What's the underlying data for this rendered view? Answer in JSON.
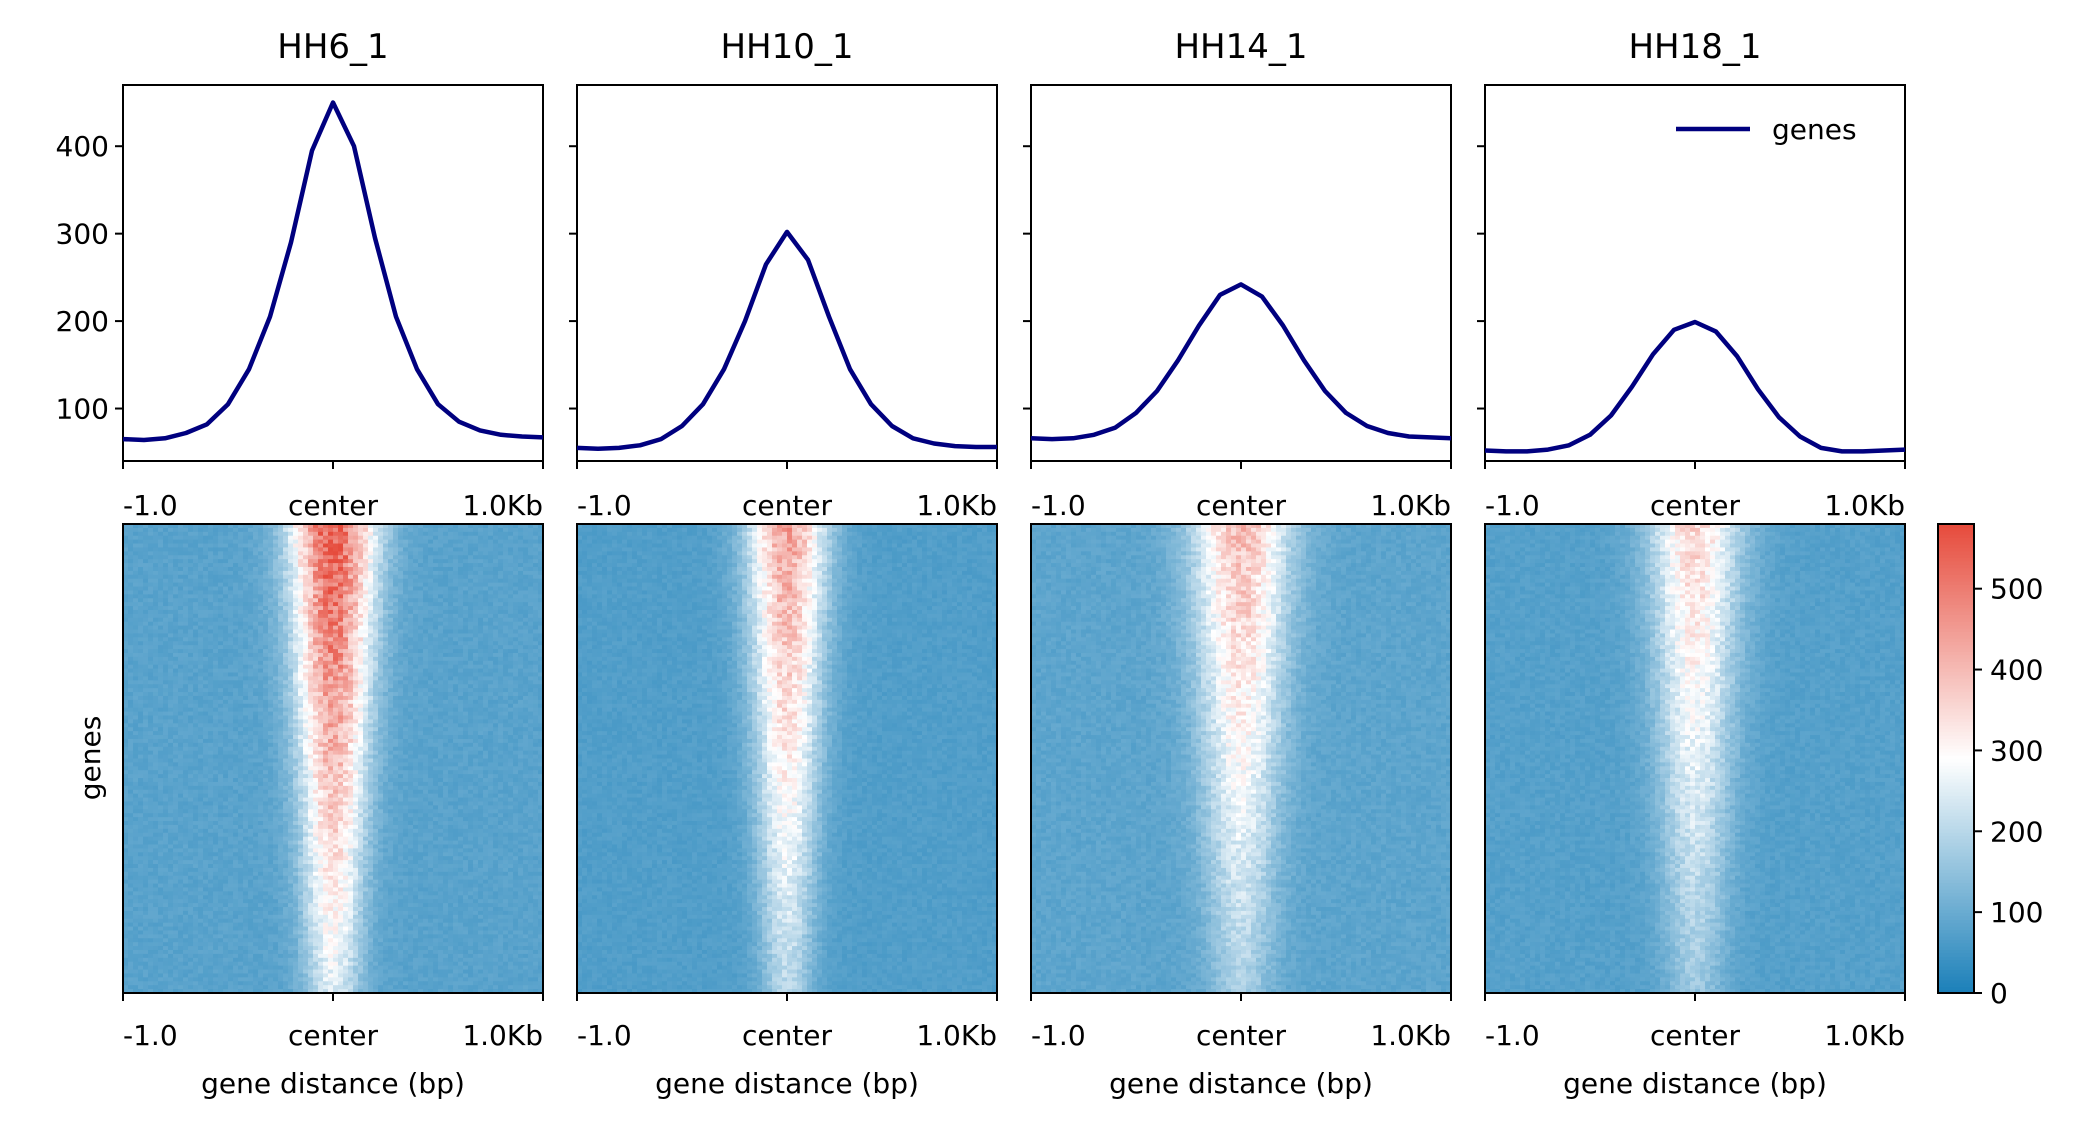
{
  "chart_data": {
    "type": "line",
    "panels": [
      {
        "title": "HH6_1",
        "profile": {
          "x": [
            -1.0,
            -0.9,
            -0.8,
            -0.7,
            -0.6,
            -0.5,
            -0.4,
            -0.3,
            -0.2,
            -0.1,
            0.0,
            0.1,
            0.2,
            0.3,
            0.4,
            0.5,
            0.6,
            0.7,
            0.8,
            0.9,
            1.0
          ],
          "y": [
            65,
            64,
            66,
            72,
            82,
            105,
            145,
            205,
            290,
            395,
            450,
            400,
            295,
            205,
            145,
            105,
            85,
            75,
            70,
            68,
            67
          ]
        },
        "heat": {
          "peak": 560,
          "base": 80,
          "width": 0.28
        }
      },
      {
        "title": "HH10_1",
        "profile": {
          "x": [
            -1.0,
            -0.9,
            -0.8,
            -0.7,
            -0.6,
            -0.5,
            -0.4,
            -0.3,
            -0.2,
            -0.1,
            0.0,
            0.1,
            0.2,
            0.3,
            0.4,
            0.5,
            0.6,
            0.7,
            0.8,
            0.9,
            1.0
          ],
          "y": [
            55,
            54,
            55,
            58,
            65,
            80,
            105,
            145,
            200,
            265,
            302,
            270,
            205,
            145,
            105,
            80,
            66,
            60,
            57,
            56,
            56
          ]
        },
        "heat": {
          "peak": 440,
          "base": 70,
          "width": 0.26
        }
      },
      {
        "title": "HH14_1",
        "profile": {
          "x": [
            -1.0,
            -0.9,
            -0.8,
            -0.7,
            -0.6,
            -0.5,
            -0.4,
            -0.3,
            -0.2,
            -0.1,
            0.0,
            0.1,
            0.2,
            0.3,
            0.4,
            0.5,
            0.6,
            0.7,
            0.8,
            0.9,
            1.0
          ],
          "y": [
            66,
            65,
            66,
            70,
            78,
            95,
            120,
            155,
            195,
            230,
            242,
            228,
            195,
            155,
            120,
            95,
            80,
            72,
            68,
            67,
            66
          ]
        },
        "heat": {
          "peak": 400,
          "base": 85,
          "width": 0.32
        }
      },
      {
        "title": "HH18_1",
        "profile": {
          "x": [
            -1.0,
            -0.9,
            -0.8,
            -0.7,
            -0.6,
            -0.5,
            -0.4,
            -0.3,
            -0.2,
            -0.1,
            0.0,
            0.1,
            0.2,
            0.3,
            0.4,
            0.5,
            0.6,
            0.7,
            0.8,
            0.9,
            1.0
          ],
          "y": [
            52,
            51,
            51,
            53,
            58,
            70,
            92,
            125,
            162,
            190,
            199,
            188,
            160,
            122,
            90,
            68,
            55,
            51,
            51,
            52,
            53
          ]
        },
        "heat": {
          "peak": 360,
          "base": 75,
          "width": 0.3
        }
      }
    ],
    "profile_ylim": [
      40,
      470
    ],
    "profile_yticks": [
      100,
      200,
      300,
      400
    ],
    "xtick_labels": [
      "-1.0",
      "center",
      "1.0Kb"
    ],
    "xlabel": "gene distance (bp)",
    "heatmap_ylabel": "genes",
    "legend": {
      "label": "genes",
      "placement": "top-right"
    },
    "line_color": "#00007f",
    "colorbar": {
      "min": 0,
      "max": 580,
      "ticks": [
        0,
        100,
        200,
        300,
        400,
        500
      ],
      "colors": [
        "#1a7fb8",
        "#ffffff",
        "#e64b3c"
      ]
    }
  }
}
